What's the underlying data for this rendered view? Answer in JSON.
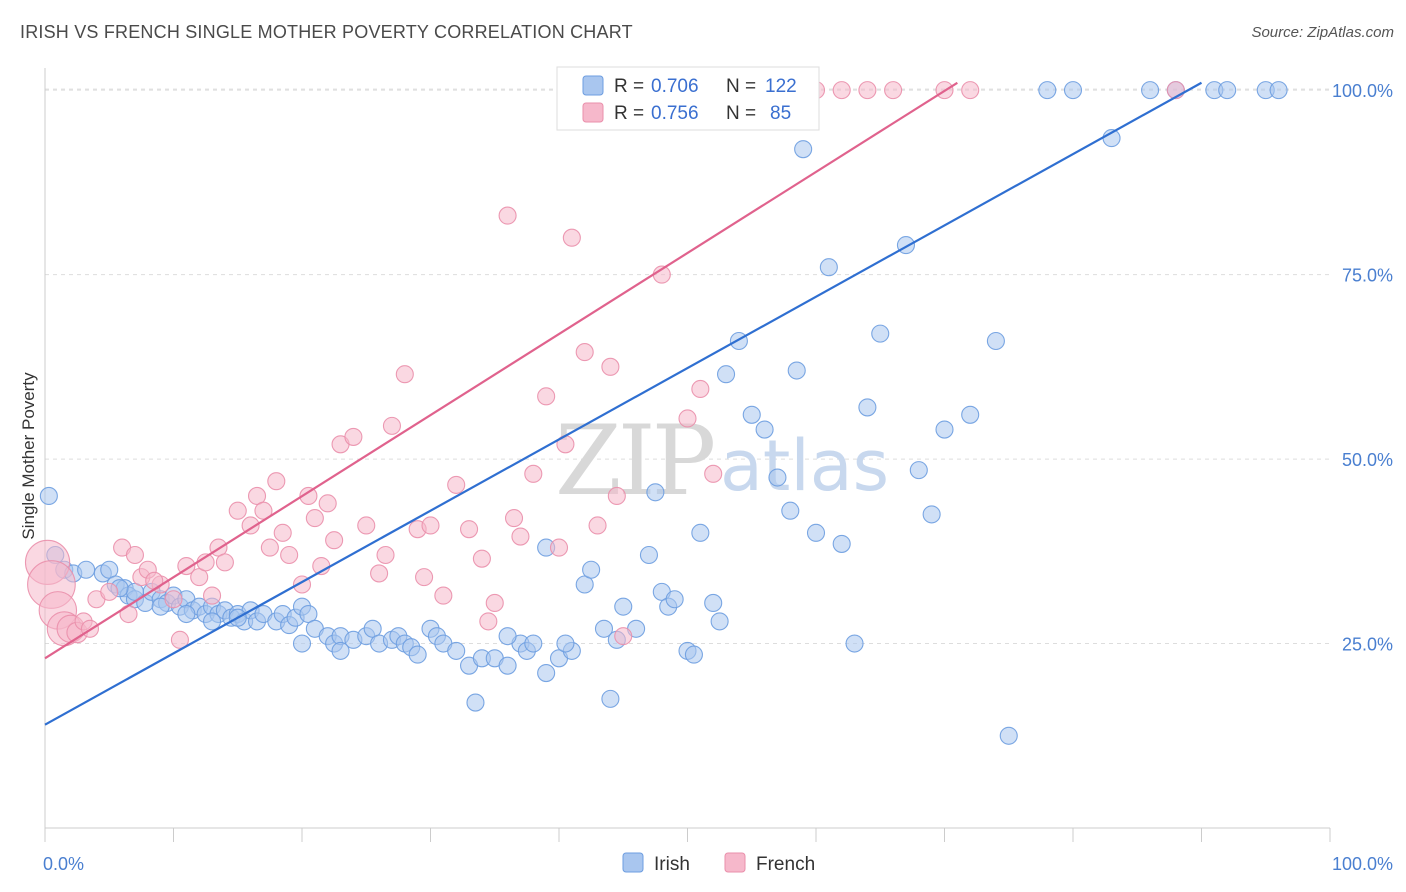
{
  "header": {
    "title": "IRISH VS FRENCH SINGLE MOTHER POVERTY CORRELATION CHART",
    "source": "Source: ZipAtlas.com"
  },
  "watermark": {
    "zip": "ZIP",
    "atlas": "atlas"
  },
  "legend_top": {
    "r_label": "R =",
    "n_label": "N =",
    "rows": [
      {
        "r": "0.706",
        "n": "122"
      },
      {
        "r": "0.756",
        "n": "85"
      }
    ]
  },
  "legend_bottom": [
    "Irish",
    "French"
  ],
  "colors": {
    "irish_fill": "#a9c6ef",
    "irish_stroke": "#6d9de0",
    "irish_line": "#2f6fd1",
    "french_fill": "#f6b8cb",
    "french_stroke": "#ea8fab",
    "french_line": "#e0628d",
    "tick_text": "#4a7fd0",
    "grid": "#dddddd"
  },
  "chart_data": {
    "type": "scatter",
    "title": "IRISH VS FRENCH SINGLE MOTHER POVERTY CORRELATION CHART",
    "xlabel": "",
    "ylabel": "Single Mother Poverty",
    "xlim": [
      0,
      100
    ],
    "ylim": [
      0,
      103
    ],
    "x_tick_labels": [
      "0.0%",
      "100.0%"
    ],
    "y_ticks": [
      25,
      50,
      75,
      100
    ],
    "y_tick_labels": [
      "25.0%",
      "50.0%",
      "75.0%",
      "100.0%"
    ],
    "grid": true,
    "legend": "top-center",
    "series": [
      {
        "name": "Irish",
        "r": 0.706,
        "n": 122,
        "trend": {
          "x": [
            0,
            90
          ],
          "y": [
            14,
            101
          ]
        },
        "points": [
          [
            0.3,
            45,
            1
          ],
          [
            0.8,
            37,
            1
          ],
          [
            1.5,
            35,
            1
          ],
          [
            2.2,
            34.5,
            1
          ],
          [
            3.2,
            35,
            1
          ],
          [
            4.5,
            34.5,
            1
          ],
          [
            5,
            35,
            1
          ],
          [
            5.5,
            33,
            1
          ],
          [
            6.2,
            32.5,
            1
          ],
          [
            6.5,
            31.5,
            1
          ],
          [
            7,
            31,
            1
          ],
          [
            7.8,
            30.5,
            1
          ],
          [
            8.3,
            32,
            1
          ],
          [
            9,
            31,
            1
          ],
          [
            9.5,
            30.5,
            1
          ],
          [
            10,
            31.5,
            1
          ],
          [
            10.5,
            30,
            1
          ],
          [
            11,
            31,
            1
          ],
          [
            11.5,
            29.5,
            1
          ],
          [
            12,
            30,
            1
          ],
          [
            12.5,
            29,
            1
          ],
          [
            13,
            30,
            1
          ],
          [
            13.5,
            29,
            1
          ],
          [
            14,
            29.5,
            1
          ],
          [
            14.5,
            28.5,
            1
          ],
          [
            15,
            29,
            1
          ],
          [
            15.5,
            28,
            1
          ],
          [
            16,
            29.5,
            1
          ],
          [
            16.5,
            28,
            1
          ],
          [
            17,
            29,
            1
          ],
          [
            18,
            28,
            1
          ],
          [
            18.5,
            29,
            1
          ],
          [
            19,
            27.5,
            1
          ],
          [
            19.5,
            28.5,
            1
          ],
          [
            20,
            30,
            1
          ],
          [
            20.5,
            29,
            1
          ],
          [
            21,
            27,
            1
          ],
          [
            22,
            26,
            1
          ],
          [
            22.5,
            25,
            1
          ],
          [
            23,
            26,
            1
          ],
          [
            24,
            25.5,
            1
          ],
          [
            25,
            26,
            1
          ],
          [
            25.5,
            27,
            1
          ],
          [
            26,
            25,
            1
          ],
          [
            27,
            25.5,
            1
          ],
          [
            27.5,
            26,
            1
          ],
          [
            28,
            25,
            1
          ],
          [
            28.5,
            24.5,
            1
          ],
          [
            29,
            23.5,
            1
          ],
          [
            30,
            27,
            1
          ],
          [
            30.5,
            26,
            1
          ],
          [
            31,
            25,
            1
          ],
          [
            32,
            24,
            1
          ],
          [
            33,
            22,
            1
          ],
          [
            33.5,
            17,
            1
          ],
          [
            34,
            23,
            1
          ],
          [
            35,
            23,
            1
          ],
          [
            36,
            22,
            1
          ],
          [
            37,
            25,
            1
          ],
          [
            37.5,
            24,
            1
          ],
          [
            38,
            25,
            1
          ],
          [
            39,
            21,
            1
          ],
          [
            40,
            23,
            1
          ],
          [
            41,
            24,
            1
          ],
          [
            42,
            33,
            1
          ],
          [
            42.5,
            35,
            1
          ],
          [
            43.5,
            27,
            1
          ],
          [
            44,
            17.5,
            1
          ],
          [
            45,
            30,
            1
          ],
          [
            46,
            27,
            1
          ],
          [
            47,
            37,
            1
          ],
          [
            47.5,
            45.5,
            1
          ],
          [
            48,
            32,
            1
          ],
          [
            48.5,
            30,
            1
          ],
          [
            49,
            31,
            1
          ],
          [
            50,
            24,
            1
          ],
          [
            50.5,
            23.5,
            1
          ],
          [
            51,
            40,
            1
          ],
          [
            52,
            30.5,
            1
          ],
          [
            52.5,
            28,
            1
          ],
          [
            53,
            61.5,
            1
          ],
          [
            54,
            66,
            1
          ],
          [
            55,
            56,
            1
          ],
          [
            56,
            54,
            1
          ],
          [
            57,
            47.5,
            1
          ],
          [
            58,
            43,
            1
          ],
          [
            58.5,
            62,
            1
          ],
          [
            59,
            92,
            1
          ],
          [
            60,
            40,
            1
          ],
          [
            61,
            76,
            1
          ],
          [
            62,
            38.5,
            1
          ],
          [
            63,
            25,
            1
          ],
          [
            64,
            57,
            1
          ],
          [
            65,
            67,
            1
          ],
          [
            67,
            79,
            1
          ],
          [
            68,
            48.5,
            1
          ],
          [
            69,
            42.5,
            1
          ],
          [
            70,
            54,
            1
          ],
          [
            72,
            56,
            1
          ],
          [
            74,
            66,
            1
          ],
          [
            75,
            12.5,
            1
          ],
          [
            78,
            100,
            1
          ],
          [
            80,
            100,
            1
          ],
          [
            83,
            93.5,
            1
          ],
          [
            86,
            100,
            1
          ],
          [
            88,
            100,
            1
          ],
          [
            91,
            100,
            1
          ],
          [
            92,
            100,
            1
          ],
          [
            95,
            100,
            1
          ],
          [
            96,
            100,
            1
          ],
          [
            39,
            38,
            1
          ],
          [
            36,
            26,
            1
          ],
          [
            23,
            24,
            1
          ],
          [
            20,
            25,
            1
          ],
          [
            15,
            28.5,
            1
          ],
          [
            13,
            28,
            1
          ],
          [
            11,
            29,
            1
          ],
          [
            9,
            30,
            1
          ],
          [
            7,
            32,
            1
          ],
          [
            5.8,
            32.5,
            1
          ],
          [
            44.5,
            25.5,
            1
          ],
          [
            40.5,
            25,
            1
          ]
        ]
      },
      {
        "name": "French",
        "r": 0.756,
        "n": 85,
        "trend": {
          "x": [
            0,
            71
          ],
          "y": [
            23,
            101
          ]
        },
        "points": [
          [
            0.2,
            36,
            2.6
          ],
          [
            0.5,
            33,
            2.8
          ],
          [
            1,
            29.5,
            2.2
          ],
          [
            1.5,
            27,
            2
          ],
          [
            2,
            27,
            1.6
          ],
          [
            2.5,
            26.5,
            1.2
          ],
          [
            3,
            28,
            1
          ],
          [
            4,
            31,
            1
          ],
          [
            5,
            32,
            1
          ],
          [
            6,
            38,
            1
          ],
          [
            7,
            37,
            1
          ],
          [
            7.5,
            34,
            1
          ],
          [
            8,
            35,
            1
          ],
          [
            9,
            33,
            1
          ],
          [
            10,
            31,
            1
          ],
          [
            10.5,
            25.5,
            1
          ],
          [
            11,
            35.5,
            1
          ],
          [
            12,
            34,
            1
          ],
          [
            13,
            31.5,
            1
          ],
          [
            13.5,
            38,
            1
          ],
          [
            14,
            36,
            1
          ],
          [
            15,
            43,
            1
          ],
          [
            16,
            41,
            1
          ],
          [
            16.5,
            45,
            1
          ],
          [
            17,
            43,
            1
          ],
          [
            18,
            47,
            1
          ],
          [
            18.5,
            40,
            1
          ],
          [
            19,
            37,
            1
          ],
          [
            20,
            33,
            1
          ],
          [
            20.5,
            45,
            1
          ],
          [
            21,
            42,
            1
          ],
          [
            21.5,
            35.5,
            1
          ],
          [
            22,
            44,
            1
          ],
          [
            23,
            52,
            1
          ],
          [
            24,
            53,
            1
          ],
          [
            25,
            41,
            1
          ],
          [
            26,
            34.5,
            1
          ],
          [
            27,
            54.5,
            1
          ],
          [
            28,
            61.5,
            1
          ],
          [
            29,
            40.5,
            1
          ],
          [
            30,
            41,
            1
          ],
          [
            31,
            31.5,
            1
          ],
          [
            32,
            46.5,
            1
          ],
          [
            33,
            40.5,
            1
          ],
          [
            34,
            36.5,
            1
          ],
          [
            34.5,
            28,
            1
          ],
          [
            35,
            30.5,
            1
          ],
          [
            36,
            83,
            1
          ],
          [
            37,
            39.5,
            1
          ],
          [
            38,
            48,
            1
          ],
          [
            39,
            58.5,
            1
          ],
          [
            40,
            38,
            1
          ],
          [
            41,
            80,
            1
          ],
          [
            42,
            64.5,
            1
          ],
          [
            43,
            41,
            1
          ],
          [
            44,
            62.5,
            1
          ],
          [
            45,
            26,
            1
          ],
          [
            46,
            100,
            1
          ],
          [
            47,
            97,
            1
          ],
          [
            48,
            75,
            1
          ],
          [
            49,
            100,
            1
          ],
          [
            50,
            55.5,
            1
          ],
          [
            51,
            59.5,
            1
          ],
          [
            52,
            48,
            1
          ],
          [
            54,
            100,
            1
          ],
          [
            55,
            100,
            1
          ],
          [
            57,
            100,
            1
          ],
          [
            60,
            100,
            1
          ],
          [
            62,
            100,
            1
          ],
          [
            64,
            100,
            1
          ],
          [
            66,
            100,
            1
          ],
          [
            70,
            100,
            1
          ],
          [
            72,
            100,
            1
          ],
          [
            88,
            100,
            1
          ],
          [
            8.5,
            33.5,
            1
          ],
          [
            12.5,
            36,
            1
          ],
          [
            17.5,
            38,
            1
          ],
          [
            22.5,
            39,
            1
          ],
          [
            26.5,
            37,
            1
          ],
          [
            29.5,
            34,
            1
          ],
          [
            36.5,
            42,
            1
          ],
          [
            40.5,
            52,
            1
          ],
          [
            44.5,
            45,
            1
          ],
          [
            3.5,
            27,
            1
          ],
          [
            6.5,
            29,
            1
          ]
        ]
      }
    ]
  }
}
